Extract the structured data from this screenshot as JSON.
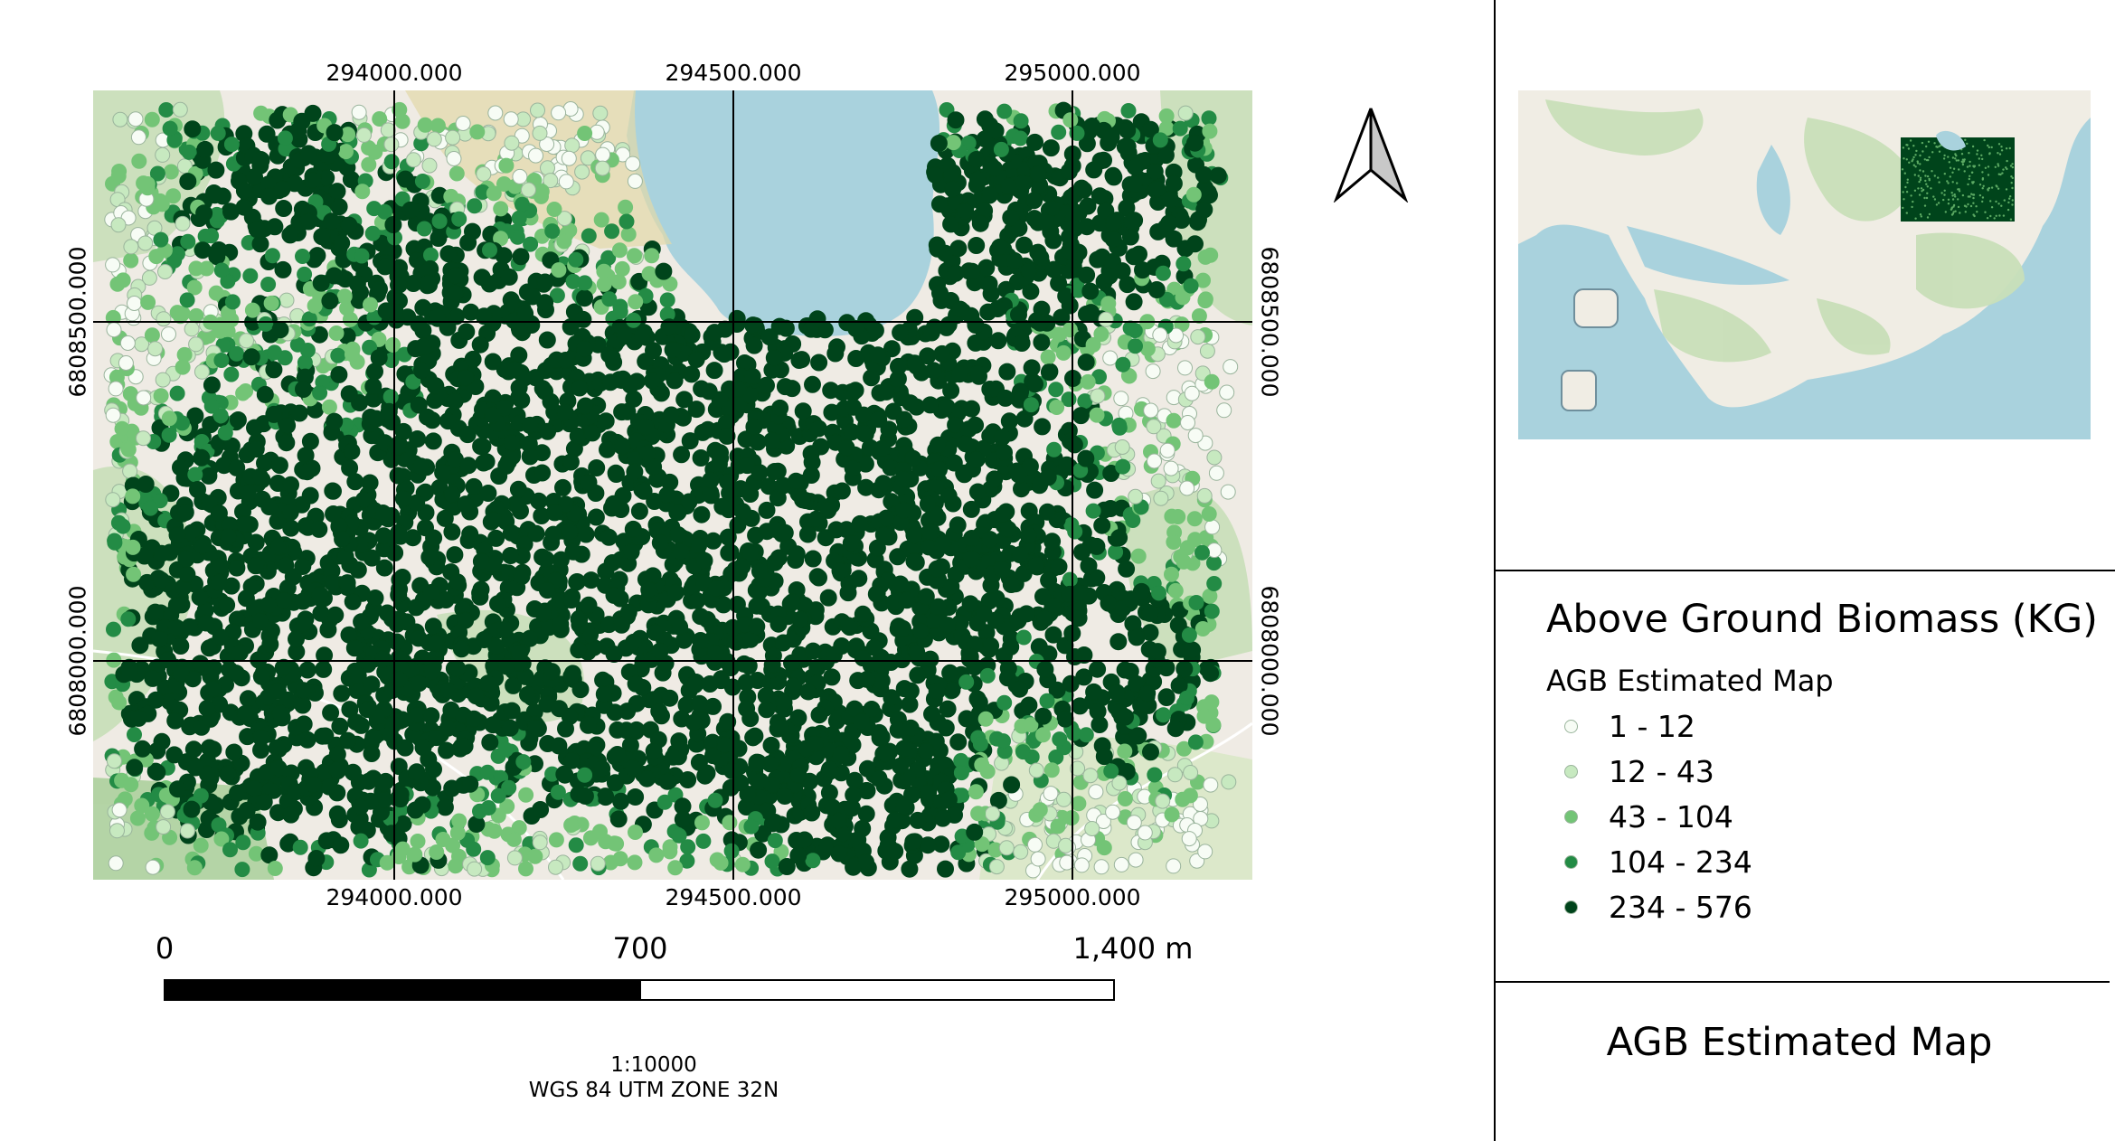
{
  "map": {
    "grid": {
      "x_labels": [
        "294000.000",
        "294500.000",
        "295000.000"
      ],
      "y_labels": [
        "6808500.000",
        "6808000.000"
      ]
    },
    "biomass_classes_drawn": 5
  },
  "north_arrow": {
    "icon": "north-arrow-icon"
  },
  "scale_bar": {
    "labels": [
      "0",
      "700",
      "1,400 m"
    ],
    "scale_text": "1:10000",
    "crs_text": "WGS 84 UTM ZONE 32N"
  },
  "legend": {
    "title": "Above Ground Biomass (KG)",
    "subtitle": "AGB Estimated Map",
    "items": [
      {
        "label": "1 - 12",
        "color": "#f7fcf5"
      },
      {
        "label": "12 - 43",
        "color": "#c7e9c0"
      },
      {
        "label": "43 - 104",
        "color": "#73c476"
      },
      {
        "label": "104 - 234",
        "color": "#238b45"
      },
      {
        "label": "234 - 576",
        "color": "#00441b"
      }
    ]
  },
  "map_title": "AGB Estimated Map",
  "colors": {
    "water": "#a9d2dd",
    "land": "#efebe4",
    "forest": "#add19e"
  }
}
